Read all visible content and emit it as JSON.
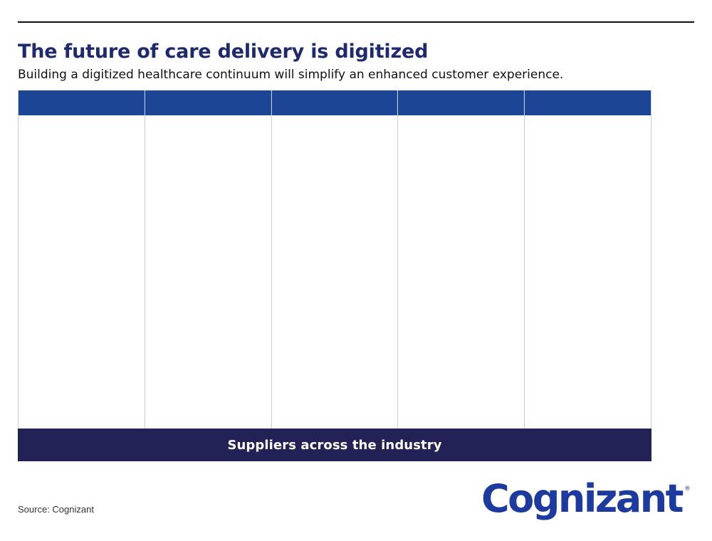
{
  "header": {
    "title": "The future of care delivery is digitized",
    "subtitle": "Building a digitized healthcare continuum will simplify an enhanced customer experience."
  },
  "columns": [
    {
      "header": ""
    },
    {
      "header": ""
    },
    {
      "header": ""
    },
    {
      "header": ""
    },
    {
      "header": ""
    }
  ],
  "footer_bar": {
    "label": "Suppliers across the industry"
  },
  "source": "Source: Cognizant",
  "logo": {
    "text": "Cognizant",
    "mark": "®"
  },
  "colors": {
    "title": "#1f2a6e",
    "column_header": "#1d4596",
    "footer_bar": "#232257",
    "logo": "#1d3a9e"
  }
}
